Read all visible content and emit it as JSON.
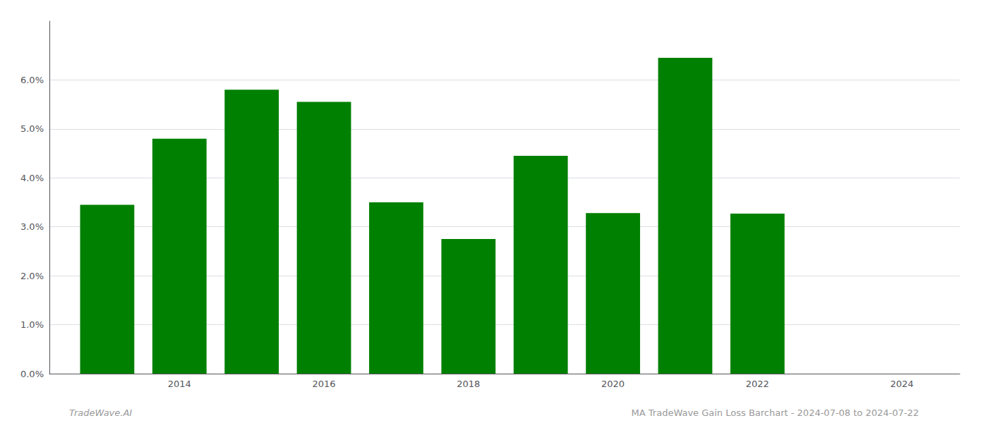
{
  "chart_data": {
    "type": "bar",
    "x": [
      2013,
      2014,
      2015,
      2016,
      2017,
      2018,
      2019,
      2020,
      2021,
      2022
    ],
    "values": [
      0.0345,
      0.048,
      0.058,
      0.0555,
      0.035,
      0.0275,
      0.0445,
      0.0328,
      0.0645,
      0.0327
    ],
    "color": "#008000",
    "xlim": [
      2012.2,
      2024.8
    ],
    "xticks": [
      2014,
      2016,
      2018,
      2020,
      2022,
      2024
    ],
    "ylim": [
      0.0,
      0.072
    ],
    "yticks": [
      {
        "value": 0.0,
        "label": "0.0%"
      },
      {
        "value": 0.01,
        "label": "1.0%"
      },
      {
        "value": 0.02,
        "label": "2.0%"
      },
      {
        "value": 0.03,
        "label": "3.0%"
      },
      {
        "value": 0.04,
        "label": "4.0%"
      },
      {
        "value": 0.05,
        "label": "5.0%"
      },
      {
        "value": 0.06,
        "label": "6.0%"
      }
    ],
    "grid": true,
    "annotations": [
      "TradeWave.AI",
      "MA TradeWave Gain Loss Barchart - 2024-07-08 to 2024-07-22"
    ]
  }
}
